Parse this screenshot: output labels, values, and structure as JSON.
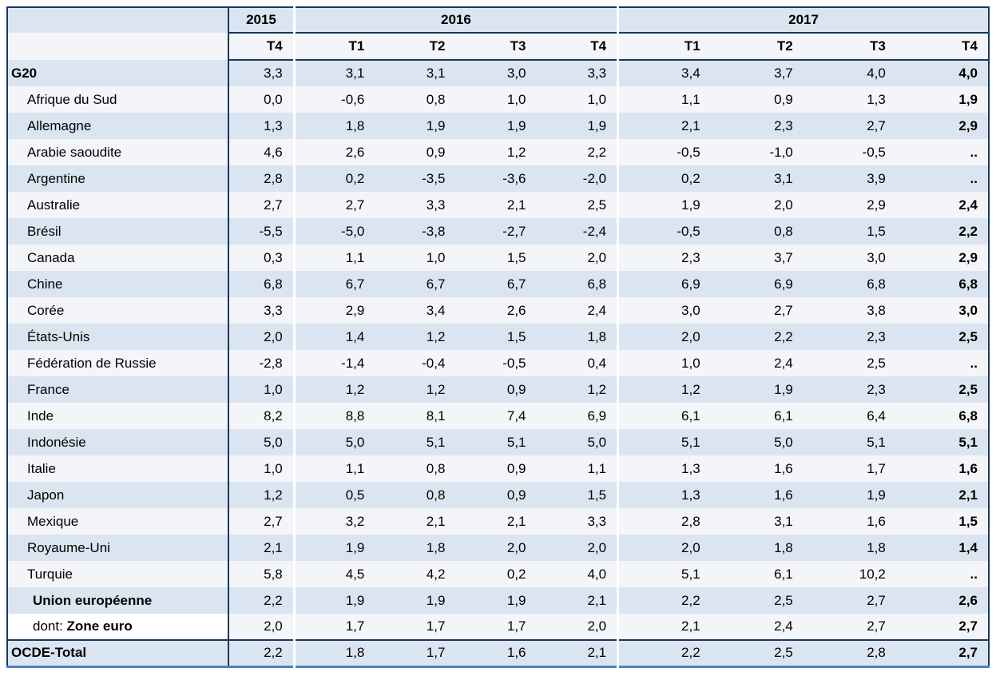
{
  "chart_data": {
    "type": "table",
    "title": "",
    "decimal_separator": ",",
    "col_groups": [
      {
        "label": "2015",
        "span": 1
      },
      {
        "label": "2016",
        "span": 4
      },
      {
        "label": "2017",
        "span": 4
      }
    ],
    "quarter_headers": [
      "T4",
      "T1",
      "T2",
      "T3",
      "T4",
      "T1",
      "T2",
      "T3",
      "T4"
    ],
    "rows": [
      {
        "label": "G20",
        "prefix": "",
        "bold": true,
        "indent": 0,
        "label_bg_white": false,
        "top_border": false,
        "values": [
          "3,3",
          "3,1",
          "3,1",
          "3,0",
          "3,3",
          "3,4",
          "3,7",
          "4,0",
          "4,0"
        ]
      },
      {
        "label": "Afrique du Sud",
        "prefix": "",
        "bold": false,
        "indent": 1,
        "label_bg_white": false,
        "top_border": false,
        "values": [
          "0,0",
          "-0,6",
          "0,8",
          "1,0",
          "1,0",
          "1,1",
          "0,9",
          "1,3",
          "1,9"
        ]
      },
      {
        "label": "Allemagne",
        "prefix": "",
        "bold": false,
        "indent": 1,
        "label_bg_white": false,
        "top_border": false,
        "values": [
          "1,3",
          "1,8",
          "1,9",
          "1,9",
          "1,9",
          "2,1",
          "2,3",
          "2,7",
          "2,9"
        ]
      },
      {
        "label": "Arabie saoudite",
        "prefix": "",
        "bold": false,
        "indent": 1,
        "label_bg_white": false,
        "top_border": false,
        "values": [
          "4,6",
          "2,6",
          "0,9",
          "1,2",
          "2,2",
          "-0,5",
          "-1,0",
          "-0,5",
          ".."
        ]
      },
      {
        "label": "Argentine",
        "prefix": "",
        "bold": false,
        "indent": 1,
        "label_bg_white": false,
        "top_border": false,
        "values": [
          "2,8",
          "0,2",
          "-3,5",
          "-3,6",
          "-2,0",
          "0,2",
          "3,1",
          "3,9",
          ".."
        ]
      },
      {
        "label": "Australie",
        "prefix": "",
        "bold": false,
        "indent": 1,
        "label_bg_white": false,
        "top_border": false,
        "values": [
          "2,7",
          "2,7",
          "3,3",
          "2,1",
          "2,5",
          "1,9",
          "2,0",
          "2,9",
          "2,4"
        ]
      },
      {
        "label": "Brésil",
        "prefix": "",
        "bold": false,
        "indent": 1,
        "label_bg_white": false,
        "top_border": false,
        "values": [
          "-5,5",
          "-5,0",
          "-3,8",
          "-2,7",
          "-2,4",
          "-0,5",
          "0,8",
          "1,5",
          "2,2"
        ]
      },
      {
        "label": "Canada",
        "prefix": "",
        "bold": false,
        "indent": 1,
        "label_bg_white": false,
        "top_border": false,
        "values": [
          "0,3",
          "1,1",
          "1,0",
          "1,5",
          "2,0",
          "2,3",
          "3,7",
          "3,0",
          "2,9"
        ]
      },
      {
        "label": "Chine",
        "prefix": "",
        "bold": false,
        "indent": 1,
        "label_bg_white": false,
        "top_border": false,
        "values": [
          "6,8",
          "6,7",
          "6,7",
          "6,7",
          "6,8",
          "6,9",
          "6,9",
          "6,8",
          "6,8"
        ]
      },
      {
        "label": "Corée",
        "prefix": "",
        "bold": false,
        "indent": 1,
        "label_bg_white": false,
        "top_border": false,
        "values": [
          "3,3",
          "2,9",
          "3,4",
          "2,6",
          "2,4",
          "3,0",
          "2,7",
          "3,8",
          "3,0"
        ]
      },
      {
        "label": "États-Unis",
        "prefix": "",
        "bold": false,
        "indent": 1,
        "label_bg_white": false,
        "top_border": false,
        "values": [
          "2,0",
          "1,4",
          "1,2",
          "1,5",
          "1,8",
          "2,0",
          "2,2",
          "2,3",
          "2,5"
        ]
      },
      {
        "label": "Fédération de Russie",
        "prefix": "",
        "bold": false,
        "indent": 1,
        "label_bg_white": false,
        "top_border": false,
        "values": [
          "-2,8",
          "-1,4",
          "-0,4",
          "-0,5",
          "0,4",
          "1,0",
          "2,4",
          "2,5",
          ".."
        ]
      },
      {
        "label": "France",
        "prefix": "",
        "bold": false,
        "indent": 1,
        "label_bg_white": false,
        "top_border": false,
        "values": [
          "1,0",
          "1,2",
          "1,2",
          "0,9",
          "1,2",
          "1,2",
          "1,9",
          "2,3",
          "2,5"
        ]
      },
      {
        "label": "Inde",
        "prefix": "",
        "bold": false,
        "indent": 1,
        "label_bg_white": false,
        "top_border": false,
        "values": [
          "8,2",
          "8,8",
          "8,1",
          "7,4",
          "6,9",
          "6,1",
          "6,1",
          "6,4",
          "6,8"
        ]
      },
      {
        "label": "Indonésie",
        "prefix": "",
        "bold": false,
        "indent": 1,
        "label_bg_white": false,
        "top_border": false,
        "values": [
          "5,0",
          "5,0",
          "5,1",
          "5,1",
          "5,0",
          "5,1",
          "5,0",
          "5,1",
          "5,1"
        ]
      },
      {
        "label": "Italie",
        "prefix": "",
        "bold": false,
        "indent": 1,
        "label_bg_white": false,
        "top_border": false,
        "values": [
          "1,0",
          "1,1",
          "0,8",
          "0,9",
          "1,1",
          "1,3",
          "1,6",
          "1,7",
          "1,6"
        ]
      },
      {
        "label": "Japon",
        "prefix": "",
        "bold": false,
        "indent": 1,
        "label_bg_white": false,
        "top_border": false,
        "values": [
          "1,2",
          "0,5",
          "0,8",
          "0,9",
          "1,5",
          "1,3",
          "1,6",
          "1,9",
          "2,1"
        ]
      },
      {
        "label": "Mexique",
        "prefix": "",
        "bold": false,
        "indent": 1,
        "label_bg_white": false,
        "top_border": false,
        "values": [
          "2,7",
          "3,2",
          "2,1",
          "2,1",
          "3,3",
          "2,8",
          "3,1",
          "1,6",
          "1,5"
        ]
      },
      {
        "label": "Royaume-Uni",
        "prefix": "",
        "bold": false,
        "indent": 1,
        "label_bg_white": false,
        "top_border": false,
        "values": [
          "2,1",
          "1,9",
          "1,8",
          "2,0",
          "2,0",
          "2,0",
          "1,8",
          "1,8",
          "1,4"
        ]
      },
      {
        "label": "Turquie",
        "prefix": "",
        "bold": false,
        "indent": 1,
        "label_bg_white": false,
        "top_border": false,
        "values": [
          "5,8",
          "4,5",
          "4,2",
          "0,2",
          "4,0",
          "5,1",
          "6,1",
          "10,2",
          ".."
        ]
      },
      {
        "label": "Union européenne",
        "prefix": "",
        "bold": true,
        "indent": 2,
        "label_bg_white": false,
        "top_border": false,
        "values": [
          "2,2",
          "1,9",
          "1,9",
          "1,9",
          "2,1",
          "2,2",
          "2,5",
          "2,7",
          "2,6"
        ]
      },
      {
        "label": "Zone euro",
        "prefix": "dont: ",
        "bold": true,
        "indent": 2,
        "label_bg_white": true,
        "top_border": false,
        "values": [
          "2,0",
          "1,7",
          "1,7",
          "1,7",
          "2,0",
          "2,1",
          "2,4",
          "2,7",
          "2,7"
        ]
      },
      {
        "label": "OCDE-Total",
        "prefix": "",
        "bold": true,
        "indent": 0,
        "label_bg_white": false,
        "top_border": true,
        "values": [
          "2,2",
          "1,8",
          "1,7",
          "1,6",
          "2,1",
          "2,2",
          "2,5",
          "2,8",
          "2,7"
        ]
      }
    ],
    "layout_hints": {
      "last_column_bold": true,
      "missing_value_symbol": "..",
      "stripe_colors": {
        "blue": "#dbe5f1",
        "light": "#f3f5f8"
      },
      "border_dark": "#17375d",
      "border_bottom": "#4f81bd"
    }
  }
}
